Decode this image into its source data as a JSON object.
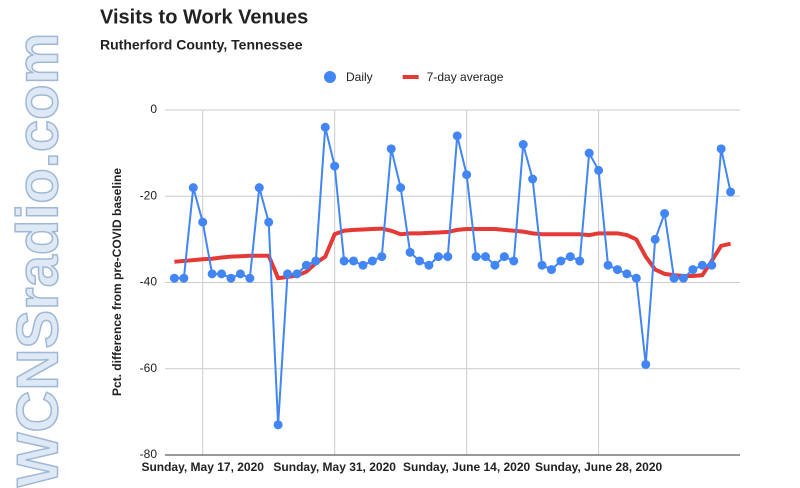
{
  "chart_data": {
    "type": "line",
    "title": "Visits to Work Venues",
    "subtitle": "Rutherford County, Tennessee",
    "y_label": "Pct. difference from pre-COVID baseline",
    "watermark": "WCNSradio.com",
    "x": [
      "2020-05-14",
      "2020-05-15",
      "2020-05-16",
      "2020-05-17",
      "2020-05-18",
      "2020-05-19",
      "2020-05-20",
      "2020-05-21",
      "2020-05-22",
      "2020-05-23",
      "2020-05-24",
      "2020-05-25",
      "2020-05-26",
      "2020-05-27",
      "2020-05-28",
      "2020-05-29",
      "2020-05-30",
      "2020-05-31",
      "2020-06-01",
      "2020-06-02",
      "2020-06-03",
      "2020-06-04",
      "2020-06-05",
      "2020-06-06",
      "2020-06-07",
      "2020-06-08",
      "2020-06-09",
      "2020-06-10",
      "2020-06-11",
      "2020-06-12",
      "2020-06-13",
      "2020-06-14",
      "2020-06-15",
      "2020-06-16",
      "2020-06-17",
      "2020-06-18",
      "2020-06-19",
      "2020-06-20",
      "2020-06-21",
      "2020-06-22",
      "2020-06-23",
      "2020-06-24",
      "2020-06-25",
      "2020-06-26",
      "2020-06-27",
      "2020-06-28",
      "2020-06-29",
      "2020-06-30",
      "2020-07-01",
      "2020-07-02",
      "2020-07-03",
      "2020-07-04",
      "2020-07-05",
      "2020-07-06",
      "2020-07-07",
      "2020-07-08",
      "2020-07-09",
      "2020-07-10",
      "2020-07-11",
      "2020-07-12"
    ],
    "series": [
      {
        "name": "Daily",
        "color": "#4285f4",
        "marker": "circle",
        "values": [
          -39,
          -39,
          -18,
          -26,
          -38,
          -38,
          -39,
          -38,
          -39,
          -18,
          -26,
          -73,
          -38,
          -38,
          -36,
          -35,
          -4,
          -13,
          -35,
          -35,
          -36,
          -35,
          -34,
          -9,
          -18,
          -33,
          -35,
          -36,
          -34,
          -34,
          -6,
          -15,
          -34,
          -34,
          -36,
          -34,
          -35,
          -8,
          -16,
          -36,
          -37,
          -35,
          -34,
          -35,
          -10,
          -14,
          -36,
          -37,
          -38,
          -39,
          -59,
          -30,
          -24,
          -39,
          -39,
          -37,
          -36,
          -36,
          -9,
          -19
        ]
      },
      {
        "name": "7-day average",
        "color": "#e53935",
        "marker": "none",
        "values": [
          -35.2,
          -35,
          -34.8,
          -34.6,
          -34.5,
          -34.2,
          -34,
          -33.9,
          -33.8,
          -33.8,
          -33.8,
          -39,
          -38.7,
          -38.4,
          -37.5,
          -35.5,
          -34,
          -28.8,
          -28,
          -27.8,
          -27.7,
          -27.6,
          -27.5,
          -28,
          -28.8,
          -28.6,
          -28.6,
          -28.5,
          -28.4,
          -28.3,
          -27.8,
          -27.6,
          -27.6,
          -27.6,
          -27.6,
          -27.8,
          -28,
          -28.2,
          -28.6,
          -28.8,
          -28.8,
          -28.8,
          -28.8,
          -28.8,
          -29,
          -28.6,
          -28.6,
          -28.6,
          -29,
          -30,
          -34,
          -37,
          -38,
          -38.3,
          -38.5,
          -38.5,
          -38.3,
          -35,
          -31.5,
          -31
        ]
      }
    ],
    "xlim": [
      "2020-05-13",
      "2020-07-13"
    ],
    "xticks": [
      {
        "value": "2020-05-17",
        "label": "Sunday, May 17, 2020"
      },
      {
        "value": "2020-05-31",
        "label": "Sunday, May 31, 2020"
      },
      {
        "value": "2020-06-14",
        "label": "Sunday, June 14, 2020"
      },
      {
        "value": "2020-06-28",
        "label": "Sunday, June 28, 2020"
      }
    ],
    "ylim": [
      -80,
      0
    ],
    "yticks": [
      0,
      -20,
      -40,
      -60,
      -80
    ],
    "grid": true,
    "legend": "top"
  }
}
